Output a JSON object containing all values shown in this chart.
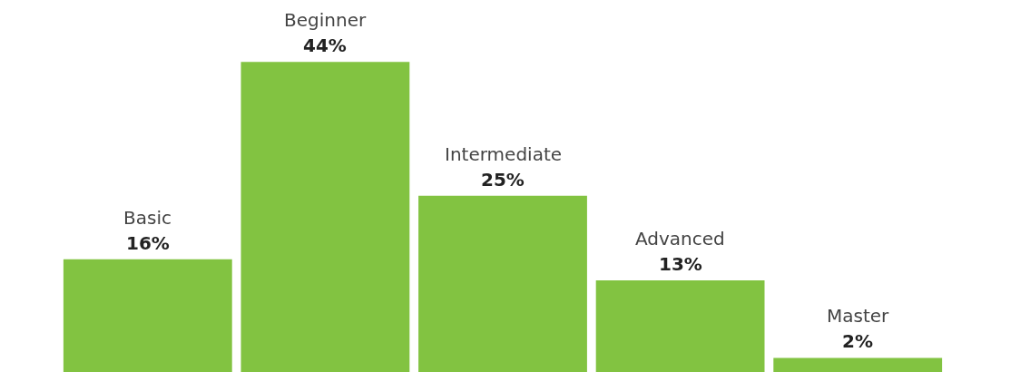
{
  "chart_data": {
    "type": "bar",
    "categories": [
      "Basic",
      "Beginner",
      "Intermediate",
      "Advanced",
      "Master"
    ],
    "values": [
      16,
      44,
      25,
      13,
      2
    ],
    "value_labels": [
      "16%",
      "44%",
      "25%",
      "13%",
      "2%"
    ],
    "color": "#82c341",
    "tick_labels": false
  }
}
